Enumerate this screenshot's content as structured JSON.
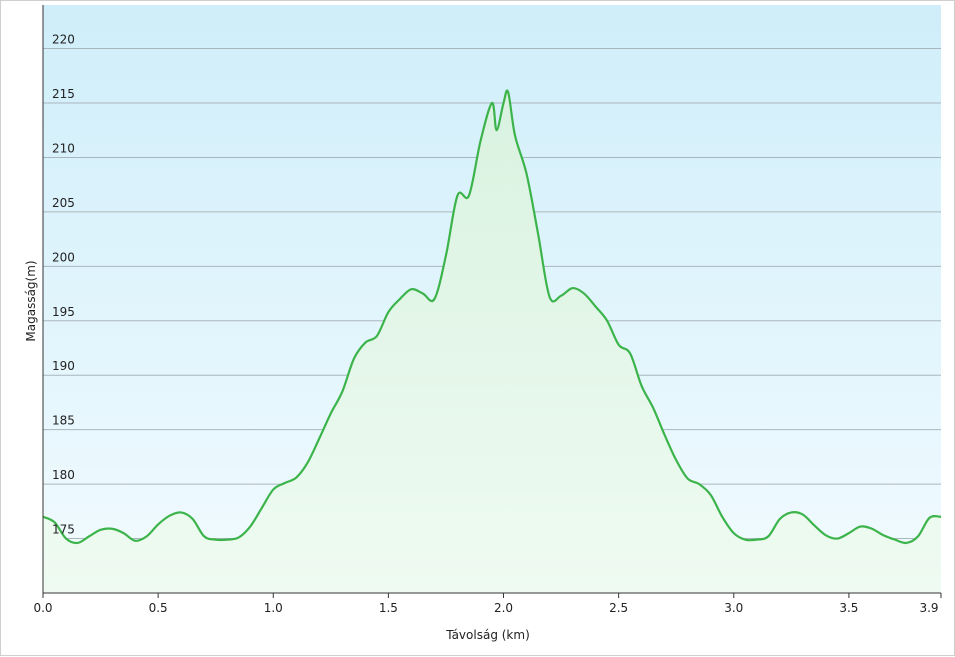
{
  "chart_data": {
    "type": "area",
    "xlabel": "Távolság  (km)",
    "ylabel": "Magasság(m)",
    "xlim": [
      0,
      3.9
    ],
    "ylim": [
      170,
      224
    ],
    "x_ticks": [
      "0.0",
      "0.5",
      "1.0",
      "1.5",
      "2.0",
      "2.5",
      "3.0",
      "3.5",
      "3.9"
    ],
    "y_ticks": [
      "175",
      "180",
      "185",
      "190",
      "195",
      "200",
      "205",
      "210",
      "215",
      "220"
    ],
    "grid": true,
    "colors": {
      "line": "#3cb44b",
      "fill_top": "#d9f2e0",
      "bg_top": "#cfeefa",
      "bg_bottom": "#f2fbff",
      "grid": "#aab6bd"
    },
    "series": [
      {
        "x": [
          0,
          0.05,
          0.1,
          0.15,
          0.2,
          0.25,
          0.3,
          0.35,
          0.4,
          0.45,
          0.5,
          0.55,
          0.6,
          0.65,
          0.7,
          0.75,
          0.8,
          0.85,
          0.9,
          0.95,
          1.0,
          1.05,
          1.1,
          1.15,
          1.2,
          1.25,
          1.3,
          1.35,
          1.4,
          1.45,
          1.5,
          1.55,
          1.6,
          1.65,
          1.7,
          1.75,
          1.8,
          1.85,
          1.9,
          1.95,
          1.97,
          2.0,
          2.02,
          2.05,
          2.1,
          2.15,
          2.2,
          2.25,
          2.3,
          2.35,
          2.4,
          2.45,
          2.5,
          2.55,
          2.6,
          2.65,
          2.7,
          2.75,
          2.8,
          2.85,
          2.9,
          2.95,
          3.0,
          3.05,
          3.1,
          3.15,
          3.2,
          3.25,
          3.3,
          3.35,
          3.4,
          3.45,
          3.5,
          3.55,
          3.6,
          3.65,
          3.7,
          3.75,
          3.8,
          3.85,
          3.9
        ],
        "y": [
          177,
          176.5,
          175,
          174.6,
          175.2,
          175.8,
          175.9,
          175.5,
          174.8,
          175.2,
          176.3,
          177.1,
          177.4,
          176.8,
          175.2,
          174.9,
          174.9,
          175.1,
          176.1,
          177.8,
          179.5,
          180.1,
          180.6,
          182.0,
          184.2,
          186.5,
          188.5,
          191.5,
          193.0,
          193.6,
          195.8,
          197.0,
          197.9,
          197.5,
          197.0,
          201.0,
          206.5,
          206.5,
          211.5,
          215.0,
          212.5,
          215.0,
          216.0,
          212.0,
          208.5,
          203.0,
          197.2,
          197.3,
          198.0,
          197.5,
          196.3,
          195.0,
          192.8,
          192.0,
          189.0,
          187.0,
          184.5,
          182.2,
          180.5,
          180.0,
          179.0,
          177.0,
          175.5,
          174.9,
          174.9,
          175.2,
          176.8,
          177.4,
          177.2,
          176.2,
          175.3,
          175.0,
          175.5,
          176.1,
          175.9,
          175.3,
          174.9,
          174.6,
          175.2,
          176.9,
          177.0
        ]
      }
    ]
  }
}
